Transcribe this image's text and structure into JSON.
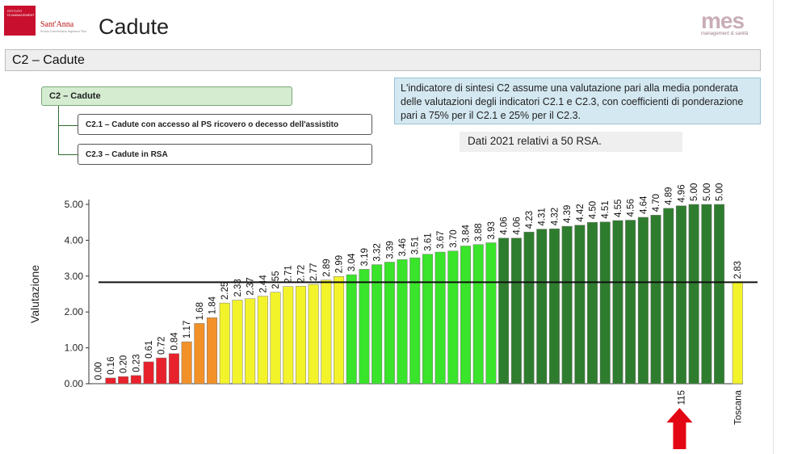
{
  "header": {
    "logo_lines": [
      "ISTITUTO",
      "DI MANAGEMENT"
    ],
    "logo_name": "Sant'Anna",
    "logo_tagline": "Scuola Universitaria Superiore Pisa",
    "title": "Cadute",
    "brand_logo": "mes",
    "brand_sub": "management & sanità"
  },
  "section": {
    "title": "C2 – Cadute"
  },
  "tree": {
    "root": "C2 – Cadute",
    "children": [
      "C2.1 – Cadute con accesso al PS ricovero o decesso dell'assistito",
      "C2.3 – Cadute in RSA"
    ]
  },
  "info": {
    "text": "L'indicatore di sintesi C2 assume una valutazione pari alla media ponderata delle valutazioni degli indicatori C2.1 e C2.3, con coefficienti di ponderazione pari a 75% per il C2.1 e 25% per il C2.3."
  },
  "dati": "Dati 2021 relativi a 50 RSA.",
  "colors": {
    "red": "#e8222c",
    "orange": "#f39129",
    "yellow": "#f3f32b",
    "light_green": "#39e42a",
    "dark_green": "#2e7d2e",
    "reference_line": "#111111",
    "arrow": "#e30613"
  },
  "chart_data": {
    "type": "bar",
    "ylabel": "Valutazione",
    "ylim": [
      0,
      5
    ],
    "yticks": [
      "0.00",
      "1.00",
      "2.00",
      "3.00",
      "4.00",
      "5.00"
    ],
    "values": [
      0.0,
      0.16,
      0.2,
      0.23,
      0.61,
      0.72,
      0.84,
      1.17,
      1.68,
      1.84,
      2.25,
      2.33,
      2.37,
      2.44,
      2.55,
      2.71,
      2.72,
      2.77,
      2.89,
      2.99,
      3.04,
      3.19,
      3.32,
      3.39,
      3.46,
      3.51,
      3.61,
      3.67,
      3.7,
      3.84,
      3.88,
      3.93,
      4.06,
      4.06,
      4.23,
      4.31,
      4.32,
      4.39,
      4.42,
      4.5,
      4.51,
      4.55,
      4.56,
      4.64,
      4.7,
      4.89,
      4.96,
      5.0,
      5.0,
      5.0
    ],
    "labels": [
      "0.00",
      "0.16",
      "0.20",
      "0.23",
      "0.61",
      "0.72",
      "0.84",
      "1.17",
      "1.68",
      "1.84",
      "2.25",
      "2.33",
      "2.37",
      "2.44",
      "2.55",
      "2.71",
      "2.72",
      "2.77",
      "2.89",
      "2.99",
      "3.04",
      "3.19",
      "3.32",
      "3.39",
      "3.46",
      "3.51",
      "3.61",
      "3.67",
      "3.70",
      "3.84",
      "3.88",
      "3.93",
      "4.06",
      "4.06",
      "4.23",
      "4.31",
      "4.32",
      "4.39",
      "4.42",
      "4.50",
      "4.51",
      "4.55",
      "4.56",
      "4.64",
      "4.70",
      "4.89",
      "4.96",
      "5.00",
      "5.00",
      "5.00"
    ],
    "highlight": {
      "index": 46,
      "label": "115"
    },
    "reference": {
      "name": "Toscana",
      "value": 2.83,
      "label": "2.83"
    },
    "grid": false
  }
}
